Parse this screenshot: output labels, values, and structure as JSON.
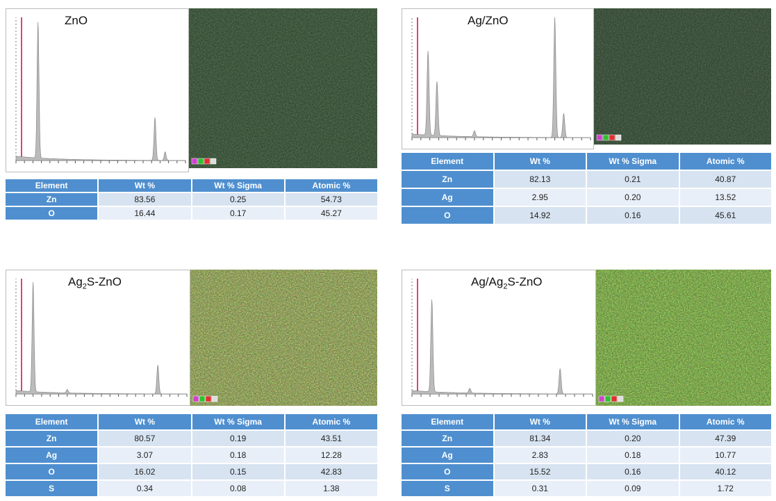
{
  "panels": [
    {
      "title": [
        {
          "text": "ZnO"
        }
      ],
      "table": {
        "header": [
          "Element",
          "Wt %",
          "Wt % Sigma",
          "Atomic %"
        ],
        "rows": [
          [
            "Zn",
            "83.56",
            "0.25",
            "54.73"
          ],
          [
            "O",
            "16.44",
            "0.17",
            "45.27"
          ]
        ]
      }
    },
    {
      "title": [
        {
          "text": "Ag/ZnO"
        }
      ],
      "table": {
        "header": [
          "Element",
          "Wt %",
          "Wt % Sigma",
          "Atomic %"
        ],
        "rows": [
          [
            "Zn",
            "82.13",
            "0.21",
            "40.87"
          ],
          [
            "Ag",
            "2.95",
            "0.20",
            "13.52"
          ],
          [
            "O",
            "14.92",
            "0.16",
            "45.61"
          ]
        ]
      }
    },
    {
      "title": [
        {
          "text": "Ag"
        },
        {
          "text": "2",
          "sub": true
        },
        {
          "text": "S-ZnO"
        }
      ],
      "table": {
        "header": [
          "Element",
          "Wt %",
          "Wt % Sigma",
          "Atomic %"
        ],
        "rows": [
          [
            "Zn",
            "80.57",
            "0.19",
            "43.51"
          ],
          [
            "Ag",
            "3.07",
            "0.18",
            "12.28"
          ],
          [
            "O",
            "16.02",
            "0.15",
            "42.83"
          ],
          [
            "S",
            "0.34",
            "0.08",
            "1.38"
          ]
        ]
      }
    },
    {
      "title": [
        {
          "text": "Ag/Ag"
        },
        {
          "text": "2",
          "sub": true
        },
        {
          "text": "S-ZnO"
        }
      ],
      "table": {
        "header": [
          "Element",
          "Wt %",
          "Wt % Sigma",
          "Atomic %"
        ],
        "rows": [
          [
            "Zn",
            "81.34",
            "0.20",
            "47.39"
          ],
          [
            "Ag",
            "2.83",
            "0.18",
            "10.77"
          ],
          [
            "O",
            "15.52",
            "0.16",
            "40.12"
          ],
          [
            "S",
            "0.31",
            "0.09",
            "1.72"
          ]
        ]
      }
    }
  ]
}
